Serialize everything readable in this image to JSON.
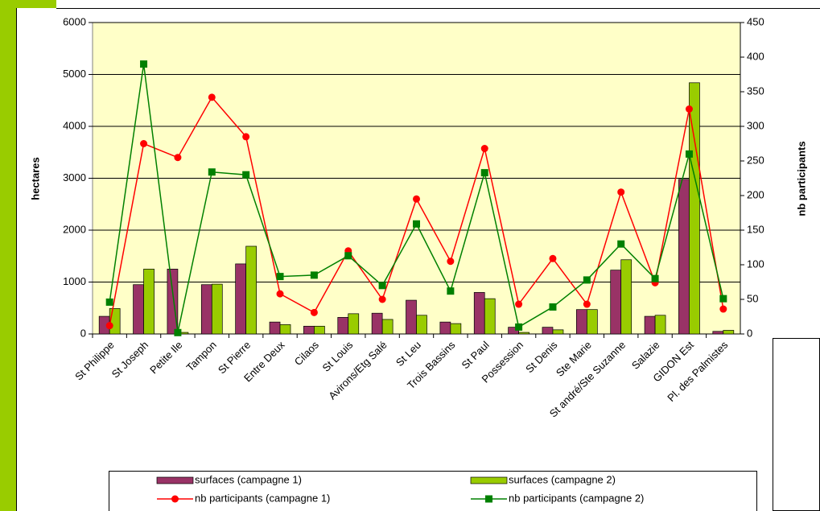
{
  "chart_data": {
    "type": "bar_line",
    "ylabel": "hectares",
    "y2label": "nb participants",
    "categories": [
      "St Philippe",
      "St Joseph",
      "Petite Ile",
      "Tampon",
      "St Pierre",
      "Entre Deux",
      "Cilaos",
      "St Louis",
      "Avirons/Etg Salé",
      "St Leu",
      "Trois Bassins",
      "St Paul",
      "Possession",
      "St Denis",
      "Ste Marie",
      "St andré/Ste Suzanne",
      "Salazie",
      "GIDON Est",
      "Pl. des Palmistes"
    ],
    "series": [
      {
        "name": "surfaces (campagne 1)",
        "type": "bar",
        "color": "#993366",
        "values": [
          340,
          950,
          1250,
          950,
          1350,
          230,
          150,
          320,
          400,
          650,
          230,
          800,
          130,
          130,
          470,
          1230,
          340,
          2980,
          50
        ]
      },
      {
        "name": "surfaces (campagne 2)",
        "type": "bar",
        "color": "#99cc00",
        "values": [
          490,
          1250,
          30,
          960,
          1690,
          180,
          150,
          390,
          280,
          360,
          200,
          680,
          30,
          80,
          470,
          1430,
          360,
          4840,
          70
        ]
      },
      {
        "name": "nb participants (campagne 1)",
        "type": "line",
        "marker": "circle",
        "axis": "y2",
        "color": "#ff0000",
        "values": [
          12,
          275,
          255,
          342,
          285,
          58,
          31,
          120,
          50,
          195,
          105,
          268,
          43,
          109,
          43,
          205,
          74,
          325,
          36
        ]
      },
      {
        "name": "nb participants (campagne 2)",
        "type": "line",
        "marker": "square",
        "axis": "y2",
        "color": "#008000",
        "values": [
          46,
          390,
          2,
          234,
          230,
          83,
          85,
          113,
          70,
          159,
          62,
          233,
          10,
          39,
          78,
          130,
          80,
          260,
          51
        ]
      }
    ],
    "ylim": [
      0,
      6000
    ],
    "yticks": [
      0,
      1000,
      2000,
      3000,
      4000,
      5000,
      6000
    ],
    "y2lim": [
      0,
      450
    ],
    "y2ticks": [
      0,
      50,
      100,
      150,
      200,
      250,
      300,
      350,
      400,
      450
    ],
    "grid": true,
    "legend": "bottom"
  }
}
